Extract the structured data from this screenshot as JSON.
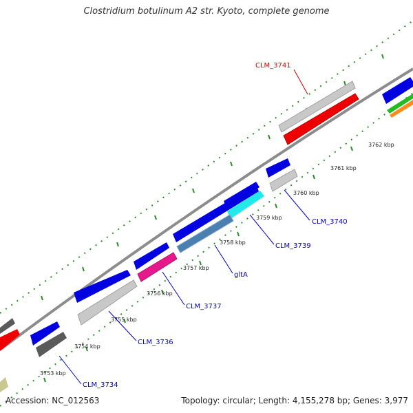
{
  "title": "Clostridium botulinum A2 str. Kyoto, complete genome",
  "footer": {
    "accession": "Accession: NC_012563",
    "summary": "Topology: circular; Length: 4,155,278 bp; Genes: 3,977"
  },
  "ticks": [
    "3753 kbp",
    "3754 kbp",
    "3755 kbp",
    "3756 kbp",
    "3757 kbp",
    "3758 kbp",
    "3759 kbp",
    "3760 kbp",
    "3761 kbp",
    "3762 kbp"
  ],
  "gene_labels": {
    "clm3741": "CLM_3741",
    "clm3740": "CLM_3740",
    "clm3739": "CLM_3739",
    "gltA": "gltA",
    "clm3737": "CLM_3737",
    "clm3736": "CLM_3736",
    "clm3734": "CLM_3734"
  },
  "colors": {
    "backbone": "#8c8c8c",
    "dots": "#2e8b2e",
    "blue": "#0000e0",
    "red": "#ee0000",
    "gray": "#c8c8c8",
    "darkgray": "#5a5a5a",
    "magenta": "#e6198c",
    "cyan": "#22eaea",
    "steel": "#4a7fb0",
    "green": "#22bb22",
    "orange": "#ff8c1a",
    "olive": "#c8c890",
    "label_red": "#dd0000",
    "label_blue": "#0000cc"
  }
}
